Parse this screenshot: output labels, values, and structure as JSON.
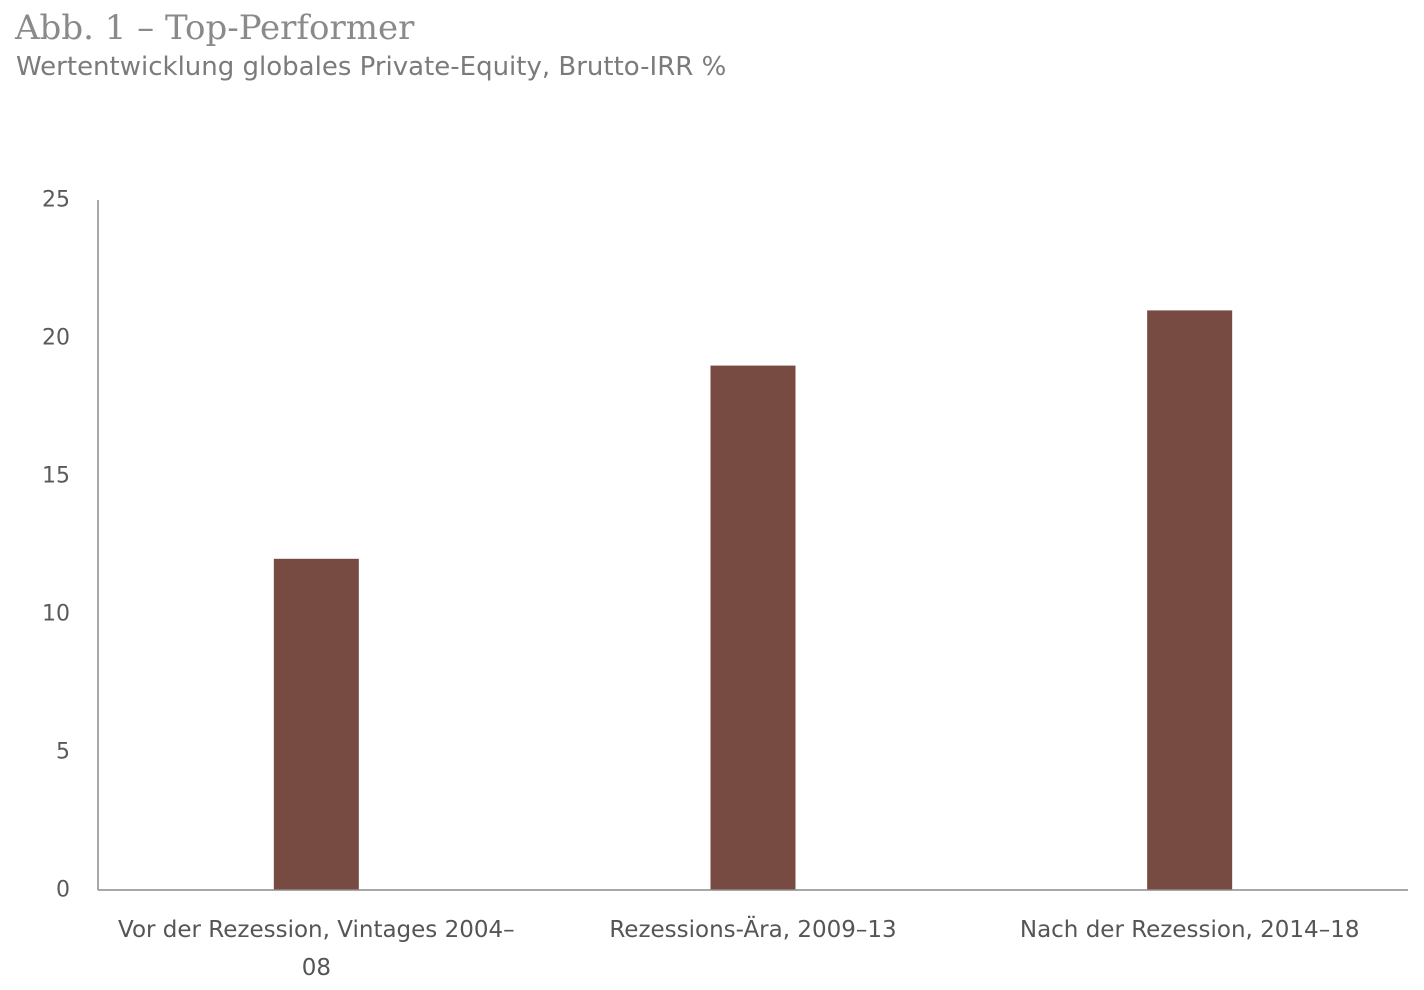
{
  "header": {
    "title": "Abb. 1 – Top-Performer",
    "subtitle": "Wertentwicklung globales Private-Equity, Brutto-IRR %"
  },
  "colors": {
    "bar": "#784b42",
    "axis": "#8c8c8c"
  },
  "chart_data": {
    "type": "bar",
    "title": "Abb. 1 – Top-Performer",
    "subtitle": "Wertentwicklung globales Private-Equity, Brutto-IRR %",
    "categories": [
      [
        "Vor der Rezession, Vintages 2004–",
        "08"
      ],
      [
        "Rezessions-Ära, 2009–13"
      ],
      [
        "Nach der Rezession, 2014–18"
      ]
    ],
    "values": [
      12,
      19,
      21
    ],
    "ylim": [
      0,
      25
    ],
    "yticks": [
      "0",
      "5",
      "10",
      "15",
      "20",
      "25"
    ],
    "grid": false,
    "legend": "none"
  }
}
